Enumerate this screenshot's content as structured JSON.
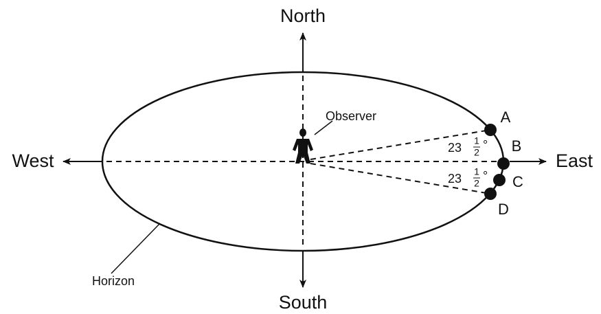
{
  "directions": {
    "north": "North",
    "south": "South",
    "east": "East",
    "west": "West"
  },
  "observer": "Observer",
  "horizon": "Horizon",
  "points": [
    "A",
    "B",
    "C",
    "D"
  ],
  "angles": [
    {
      "whole": "23",
      "numerator": "1",
      "denominator": "2",
      "unit": "°"
    },
    {
      "whole": "23",
      "numerator": "1",
      "denominator": "2",
      "unit": "°"
    }
  ]
}
